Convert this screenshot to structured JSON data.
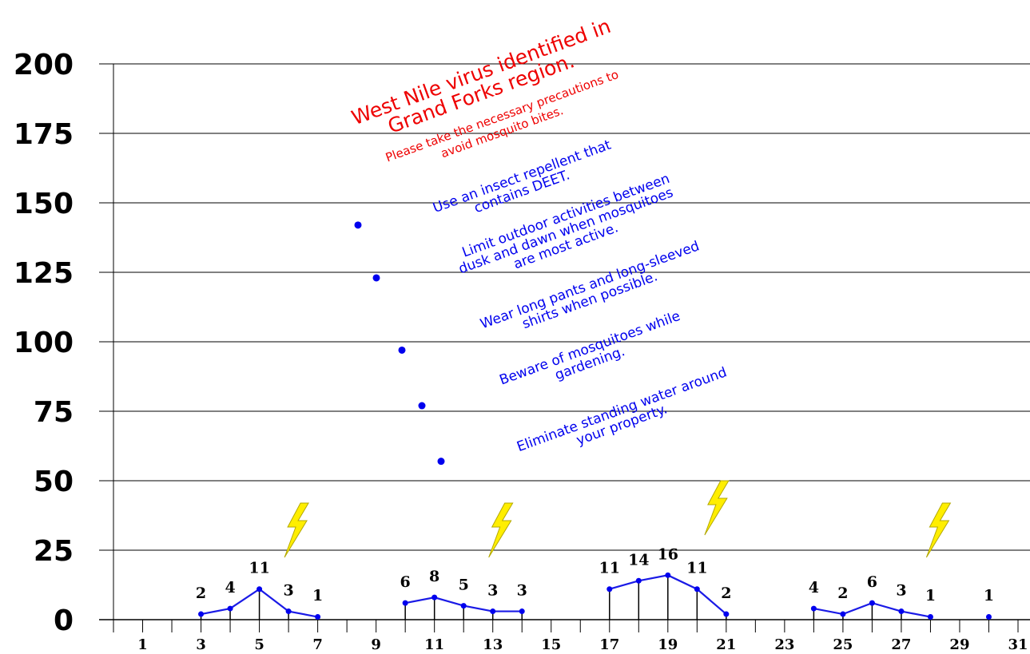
{
  "chart_data": {
    "type": "line",
    "title": "",
    "xlabel": "",
    "ylabel": "",
    "xlim": [
      0,
      31
    ],
    "ylim": [
      0,
      200
    ],
    "y_ticks": [
      0,
      25,
      50,
      75,
      100,
      125,
      150,
      175,
      200
    ],
    "x_ticks": [
      1,
      3,
      5,
      7,
      9,
      11,
      13,
      15,
      17,
      19,
      21,
      23,
      25,
      27,
      29,
      31
    ],
    "grid": "horizontal",
    "segments": [
      {
        "points": [
          {
            "x": 3,
            "y": 2
          },
          {
            "x": 4,
            "y": 4
          },
          {
            "x": 5,
            "y": 11
          },
          {
            "x": 6,
            "y": 3
          },
          {
            "x": 7,
            "y": 1
          }
        ]
      },
      {
        "points": [
          {
            "x": 10,
            "y": 6
          },
          {
            "x": 11,
            "y": 8
          },
          {
            "x": 12,
            "y": 5
          },
          {
            "x": 13,
            "y": 3
          },
          {
            "x": 14,
            "y": 3
          }
        ]
      },
      {
        "points": [
          {
            "x": 17,
            "y": 11
          },
          {
            "x": 18,
            "y": 14
          },
          {
            "x": 19,
            "y": 16
          },
          {
            "x": 20,
            "y": 11
          },
          {
            "x": 21,
            "y": 2
          }
        ]
      },
      {
        "points": [
          {
            "x": 24,
            "y": 4
          },
          {
            "x": 25,
            "y": 2
          },
          {
            "x": 26,
            "y": 6
          },
          {
            "x": 27,
            "y": 3
          },
          {
            "x": 28,
            "y": 1
          }
        ]
      },
      {
        "points": [
          {
            "x": 30,
            "y": 1
          }
        ]
      }
    ],
    "data_labels": [
      {
        "x": 3,
        "y": 2,
        "text": "2"
      },
      {
        "x": 4,
        "y": 4,
        "text": "4"
      },
      {
        "x": 5,
        "y": 11,
        "text": "11"
      },
      {
        "x": 6,
        "y": 3,
        "text": "3"
      },
      {
        "x": 7,
        "y": 1,
        "text": "1"
      },
      {
        "x": 10,
        "y": 6,
        "text": "6"
      },
      {
        "x": 11,
        "y": 8,
        "text": "8"
      },
      {
        "x": 12,
        "y": 5,
        "text": "5"
      },
      {
        "x": 13,
        "y": 3,
        "text": "3"
      },
      {
        "x": 14,
        "y": 3,
        "text": "3"
      },
      {
        "x": 17,
        "y": 11,
        "text": "11"
      },
      {
        "x": 18,
        "y": 14,
        "text": "14"
      },
      {
        "x": 19,
        "y": 16,
        "text": "16"
      },
      {
        "x": 20,
        "y": 11,
        "text": "11"
      },
      {
        "x": 21,
        "y": 2,
        "text": "2"
      },
      {
        "x": 24,
        "y": 4,
        "text": "4"
      },
      {
        "x": 25,
        "y": 2,
        "text": "2"
      },
      {
        "x": 26,
        "y": 6,
        "text": "6"
      },
      {
        "x": 27,
        "y": 3,
        "text": "3"
      },
      {
        "x": 28,
        "y": 1,
        "text": "1"
      },
      {
        "x": 30,
        "y": 1,
        "text": "1"
      }
    ],
    "lightning_marks_at_x": [
      6.3,
      13.3,
      20.7,
      28.3
    ],
    "annotation": {
      "title_lines": [
        "West Nile virus identified in",
        "Grand Forks region."
      ],
      "subtitle_lines": [
        "Please take the necessary precautions to",
        "avoid mosquito bites."
      ],
      "tips": [
        [
          "Use an insect repellent that",
          "contains DEET."
        ],
        [
          "Limit outdoor activities between",
          "dusk and dawn when mosquitoes",
          "are most active."
        ],
        [
          "Wear long pants and long-sleeved",
          "shirts when possible."
        ],
        [
          "Beware of mosquitoes while",
          "gardening."
        ],
        [
          "Eliminate standing water around",
          "your property."
        ]
      ]
    },
    "colors": {
      "series": "#1a1ae6",
      "marker": "#0000ee",
      "grid": "#000000",
      "title": "#ee0000",
      "tips": "#0000ee",
      "lightning": "#ffee00"
    }
  }
}
